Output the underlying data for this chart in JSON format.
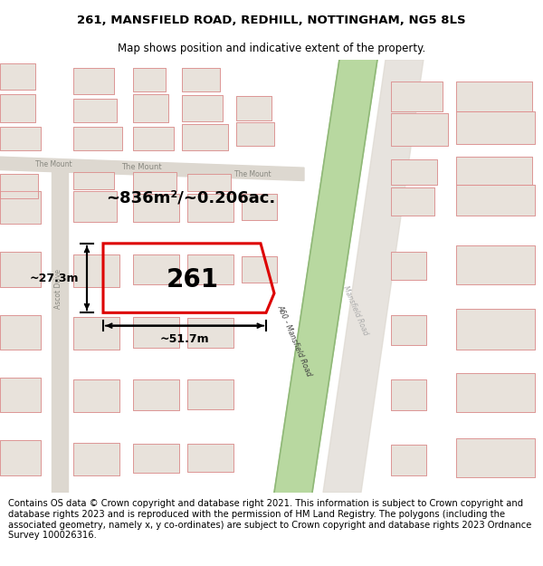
{
  "title": "261, MANSFIELD ROAD, REDHILL, NOTTINGHAM, NG5 8LS",
  "subtitle": "Map shows position and indicative extent of the property.",
  "footer": "Contains OS data © Crown copyright and database right 2021. This information is subject to Crown copyright and database rights 2023 and is reproduced with the permission of HM Land Registry. The polygons (including the associated geometry, namely x, y co-ordinates) are subject to Crown copyright and database rights 2023 Ordnance Survey 100026316.",
  "bg_color": "#f2ede8",
  "title_fontsize": 9.5,
  "subtitle_fontsize": 8.5,
  "footer_fontsize": 7.2,
  "building_fill": "#e8e2db",
  "building_stroke": "#c8c0b5",
  "road_fill": "#ddd8d0",
  "pink_line": "#e09090",
  "red_poly_color": "#dd0000",
  "green_road_fill": "#b8d8a0",
  "green_road_edge": "#90b878",
  "street_label_color": "#888880",
  "road_label_color": "#404040",
  "black": "#000000",
  "white": "#ffffff",
  "area_label": "~836m²/~0.206ac.",
  "width_label": "~51.7m",
  "height_label": "~27.3m",
  "property_number": "261"
}
